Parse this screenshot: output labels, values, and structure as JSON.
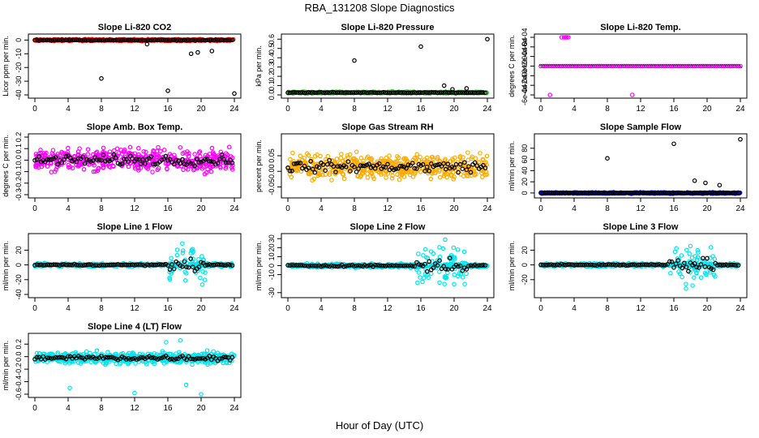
{
  "figure": {
    "title": "RBA_131208  Slope Diagnostics",
    "xlabel": "Hour of Day (UTC)"
  },
  "colors": {
    "black": "#000000",
    "red": "#ff0000",
    "green": "#22cc22",
    "magenta": "#ff00ff",
    "orange": "#ffaa00",
    "blue": "#0000ff",
    "cyan": "#00e5ee"
  },
  "chart_data": [
    {
      "type": "scatter",
      "title": "Slope Li-820 CO2",
      "ylabel": "Licor ppm per min.",
      "xlabel": "",
      "xlim": [
        0,
        24
      ],
      "ylim": [
        -40,
        2
      ],
      "xticks": [
        "0",
        "4",
        "8",
        "12",
        "16",
        "20",
        "24"
      ],
      "yticks": [
        {
          "v": 0,
          "label": "0"
        },
        {
          "v": -10,
          "label": "-10"
        },
        {
          "v": -20,
          "label": "-20"
        },
        {
          "v": -30,
          "label": "-30"
        },
        {
          "v": -40,
          "label": "-40"
        }
      ],
      "noise": {
        "color": "red",
        "center": 0,
        "spread": 0.8
      },
      "outliers": [
        {
          "x": 8,
          "y": -28,
          "color": "black"
        },
        {
          "x": 13.5,
          "y": -3,
          "color": "black"
        },
        {
          "x": 16,
          "y": -37,
          "color": "black"
        },
        {
          "x": 18.8,
          "y": -10,
          "color": "black"
        },
        {
          "x": 19.6,
          "y": -9,
          "color": "black"
        },
        {
          "x": 21.3,
          "y": -8,
          "color": "black"
        },
        {
          "x": 24,
          "y": -39,
          "color": "black"
        }
      ]
    },
    {
      "type": "scatter",
      "title": "Slope Li-820 Pressure",
      "ylabel": "kPa per min.",
      "xlabel": "",
      "xlim": [
        0,
        24
      ],
      "ylim": [
        0,
        0.62
      ],
      "xticks": [
        "0",
        "4",
        "8",
        "12",
        "16",
        "20",
        "24"
      ],
      "yticks": [
        {
          "v": 0,
          "label": "0.0"
        },
        {
          "v": 0.1,
          "label": "0.1"
        },
        {
          "v": 0.2,
          "label": "0.2"
        },
        {
          "v": 0.3,
          "label": "0.3"
        },
        {
          "v": 0.4,
          "label": "0.4"
        },
        {
          "v": 0.5,
          "label": "0.5"
        },
        {
          "v": 0.6,
          "label": "0.6"
        }
      ],
      "noise": {
        "color": "green",
        "center": 0.025,
        "spread": 0.012
      },
      "outliers": [
        {
          "x": 8,
          "y": 0.37,
          "color": "black"
        },
        {
          "x": 16,
          "y": 0.52,
          "color": "black"
        },
        {
          "x": 18.8,
          "y": 0.1,
          "color": "black"
        },
        {
          "x": 19.8,
          "y": 0.06,
          "color": "black"
        },
        {
          "x": 21.5,
          "y": 0.07,
          "color": "black"
        },
        {
          "x": 24,
          "y": 0.6,
          "color": "black"
        }
      ]
    },
    {
      "type": "scatter",
      "title": "Slope Li-820 Temp.",
      "ylabel": "degrees C per min.",
      "xlabel": "",
      "xlim": [
        0,
        24
      ],
      "ylim": [
        -0.0006,
        0.0006
      ],
      "xticks": [
        "0",
        "4",
        "8",
        "12",
        "16",
        "20",
        "24"
      ],
      "yticks": [
        {
          "v": -0.0006,
          "label": "-6e-04"
        },
        {
          "v": -0.0004,
          "label": "-4e-04"
        },
        {
          "v": -0.0002,
          "label": "-2e-04"
        },
        {
          "v": 0,
          "label": "0e+00"
        },
        {
          "v": 0.0002,
          "label": "2e-04"
        },
        {
          "v": 0.0004,
          "label": "4e-04"
        },
        {
          "v": 0.0006,
          "label": "6e-04"
        }
      ],
      "flat": {
        "color": "magenta",
        "y": 0
      },
      "outliers": [
        {
          "x": 2.5,
          "y": 0.0006,
          "color": "magenta"
        },
        {
          "x": 2.8,
          "y": 0.0006,
          "color": "magenta"
        },
        {
          "x": 3.0,
          "y": 0.0006,
          "color": "magenta"
        },
        {
          "x": 3.1,
          "y": 0.0006,
          "color": "magenta"
        },
        {
          "x": 3.3,
          "y": 0.0006,
          "color": "magenta"
        },
        {
          "x": 1.1,
          "y": -0.0006,
          "color": "magenta"
        },
        {
          "x": 11,
          "y": -0.0006,
          "color": "magenta"
        }
      ]
    },
    {
      "type": "scatter",
      "title": "Slope Amb. Box Temp.",
      "ylabel": "degrees C per min.",
      "xlabel": "",
      "xlim": [
        0,
        24
      ],
      "ylim": [
        -0.3,
        0.2
      ],
      "xticks": [
        "0",
        "4",
        "8",
        "12",
        "16",
        "20",
        "24"
      ],
      "yticks": [
        {
          "v": -0.3,
          "label": "-0.3"
        },
        {
          "v": -0.2,
          "label": "-0.2"
        },
        {
          "v": -0.1,
          "label": "-0.1"
        },
        {
          "v": 0,
          "label": "0.0"
        },
        {
          "v": 0.1,
          "label": "0.1"
        },
        {
          "v": 0.2,
          "label": "0.2"
        }
      ],
      "noise": {
        "color": "magenta",
        "center": 0,
        "spread": 0.14
      }
    },
    {
      "type": "scatter",
      "title": "Slope Gas Stream RH",
      "ylabel": "percent per min.",
      "xlabel": "",
      "xlim": [
        0,
        24
      ],
      "ylim": [
        -0.075,
        0.11
      ],
      "xticks": [
        "0",
        "4",
        "8",
        "12",
        "16",
        "20",
        "24"
      ],
      "yticks": [
        {
          "v": -0.05,
          "label": "-0.05"
        },
        {
          "v": 0,
          "label": "0.00"
        },
        {
          "v": 0.05,
          "label": "0.05"
        }
      ],
      "noise": {
        "color": "orange",
        "center": 0.015,
        "spread": 0.055
      }
    },
    {
      "type": "scatter",
      "title": "Slope Sample Flow",
      "ylabel": "ml/min per min.",
      "xlabel": "",
      "xlim": [
        0,
        24
      ],
      "ylim": [
        -3,
        100
      ],
      "xticks": [
        "0",
        "4",
        "8",
        "12",
        "16",
        "20",
        "24"
      ],
      "yticks": [
        {
          "v": 0,
          "label": "0"
        },
        {
          "v": 20,
          "label": "20"
        },
        {
          "v": 40,
          "label": "40"
        },
        {
          "v": 60,
          "label": "60"
        },
        {
          "v": 80,
          "label": "80"
        }
      ],
      "noise": {
        "color": "blue",
        "center": 0,
        "spread": 1.5
      },
      "outliers": [
        {
          "x": 8,
          "y": 62,
          "color": "black"
        },
        {
          "x": 16,
          "y": 88,
          "color": "black"
        },
        {
          "x": 18.5,
          "y": 22,
          "color": "black"
        },
        {
          "x": 19.8,
          "y": 18,
          "color": "black"
        },
        {
          "x": 21.5,
          "y": 14,
          "color": "black"
        },
        {
          "x": 24,
          "y": 96,
          "color": "black"
        }
      ]
    },
    {
      "type": "scatter",
      "title": "Slope Line 1 Flow",
      "ylabel": "ml/min per min.",
      "xlabel": "",
      "xlim": [
        0,
        24
      ],
      "ylim": [
        -40,
        38
      ],
      "xticks": [
        "0",
        "4",
        "8",
        "12",
        "16",
        "20",
        "24"
      ],
      "yticks": [
        {
          "v": -40,
          "label": "-40"
        },
        {
          "v": -20,
          "label": "-20"
        },
        {
          "v": 0,
          "label": "0"
        },
        {
          "v": 20,
          "label": "20"
        }
      ],
      "noise": {
        "color": "cyan",
        "center": 0,
        "spread": 3
      },
      "burst": {
        "color": "cyan",
        "from": 16.2,
        "to": 20.5,
        "spread": 35
      }
    },
    {
      "type": "scatter",
      "title": "Slope Line 2 Flow",
      "ylabel": "ml/min per min.",
      "xlabel": "",
      "xlim": [
        0,
        24
      ],
      "ylim": [
        -32,
        32
      ],
      "xticks": [
        "0",
        "4",
        "8",
        "12",
        "16",
        "20",
        "24"
      ],
      "yticks": [
        {
          "v": -30,
          "label": "-30"
        },
        {
          "v": -10,
          "label": "-10"
        },
        {
          "v": 0,
          "label": "0"
        },
        {
          "v": 10,
          "label": "10"
        },
        {
          "v": 20,
          "label": "20"
        },
        {
          "v": 30,
          "label": "30"
        }
      ],
      "noise": {
        "color": "cyan",
        "center": 0,
        "spread": 3
      },
      "burst": {
        "color": "cyan",
        "from": 15.5,
        "to": 21.5,
        "spread": 30
      }
    },
    {
      "type": "scatter",
      "title": "Slope Line 3 Flow",
      "ylabel": "ml/min per min.",
      "xlabel": "",
      "xlim": [
        0,
        24
      ],
      "ylim": [
        -40,
        38
      ],
      "xticks": [
        "0",
        "4",
        "8",
        "12",
        "16",
        "20",
        "24"
      ],
      "yticks": [
        {
          "v": -20,
          "label": "-20"
        },
        {
          "v": 0,
          "label": "0"
        },
        {
          "v": 20,
          "label": "20"
        }
      ],
      "noise": {
        "color": "cyan",
        "center": 0,
        "spread": 3
      },
      "burst": {
        "color": "cyan",
        "from": 15.5,
        "to": 21,
        "spread": 35
      }
    },
    {
      "type": "scatter",
      "title": "Slope Line 4 (LT) Flow",
      "ylabel": "ml/min per min.",
      "xlabel": "",
      "xlim": [
        0,
        24
      ],
      "ylim": [
        -0.6,
        0.32
      ],
      "xticks": [
        "0",
        "4",
        "8",
        "12",
        "16",
        "20",
        "24"
      ],
      "yticks": [
        {
          "v": -0.6,
          "label": "-0.6"
        },
        {
          "v": -0.4,
          "label": "-0.4"
        },
        {
          "v": -0.2,
          "label": "-0.2"
        },
        {
          "v": 0,
          "label": "0.0"
        },
        {
          "v": 0.2,
          "label": "0.2"
        }
      ],
      "noise": {
        "color": "cyan",
        "center": -0.02,
        "spread": 0.13
      },
      "outliers": [
        {
          "x": 4.2,
          "y": -0.5,
          "color": "cyan"
        },
        {
          "x": 12,
          "y": -0.58,
          "color": "cyan"
        },
        {
          "x": 17.5,
          "y": 0.26,
          "color": "cyan"
        },
        {
          "x": 18.2,
          "y": -0.45,
          "color": "cyan"
        },
        {
          "x": 20,
          "y": -0.6,
          "color": "cyan"
        },
        {
          "x": 15.8,
          "y": 0.23,
          "color": "cyan"
        }
      ]
    }
  ]
}
